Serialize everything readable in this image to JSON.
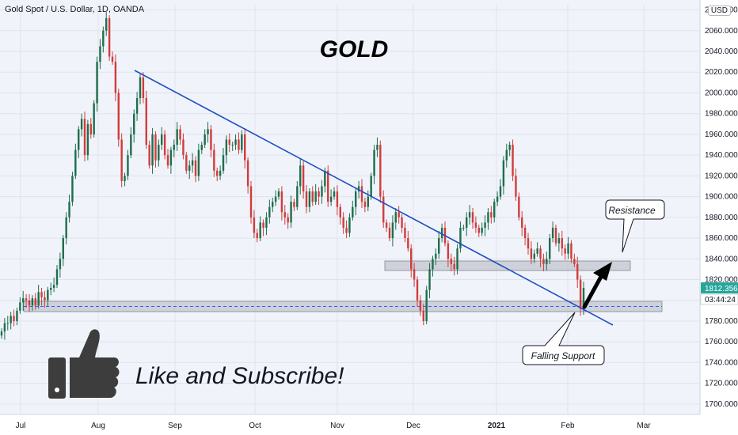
{
  "header": {
    "symbol_title": "Gold Spot / U.S. Dollar, 1D, OANDA",
    "currency_badge": "USD"
  },
  "price_scale": {
    "last_price": "1812.356",
    "last_price_color": "#26a69a",
    "countdown": "03:44:24",
    "countdown_color": "#131722"
  },
  "annotations": {
    "main_title": "GOLD",
    "resistance_label": "Resistance",
    "support_label": "Falling Support",
    "cta_text": "Like and Subscribe!",
    "cta_icon": "thumbs-up-icon"
  },
  "colors": {
    "up": "#1e6e4c",
    "down": "#d13c3c",
    "trendline": "#1e4fc2",
    "zone": "#b2b5be",
    "background": "#f0f3fa"
  },
  "chart_data": {
    "type": "candlestick",
    "title": "GOLD",
    "symbol": "Gold Spot / U.S. Dollar, 1D, OANDA",
    "ylim": [
      1690,
      2085
    ],
    "y_ticks": [
      1700,
      1720,
      1740,
      1760,
      1780,
      1800,
      1820,
      1840,
      1860,
      1880,
      1900,
      1920,
      1940,
      1960,
      1980,
      2000,
      2020,
      2040,
      2060,
      2080
    ],
    "y_tick_labels": [
      "1700.000",
      "1720.000",
      "1740.000",
      "1760.000",
      "1780.000",
      "",
      "1820.000",
      "1840.000",
      "1860.000",
      "1880.000",
      "1900.000",
      "1920.000",
      "1940.000",
      "1960.000",
      "1980.000",
      "2000.000",
      "2020.000",
      "2040.000",
      "2060.000",
      "2080.000"
    ],
    "x_ticks": [
      "Jul",
      "Aug",
      "Sep",
      "Oct",
      "Nov",
      "Dec",
      "2021",
      "Feb",
      "Mar"
    ],
    "candles_close": [
      1770,
      1778,
      1778,
      1785,
      1780,
      1790,
      1798,
      1802,
      1800,
      1795,
      1802,
      1795,
      1808,
      1803,
      1800,
      1810,
      1812,
      1815,
      1830,
      1840,
      1860,
      1880,
      1895,
      1920,
      1945,
      1965,
      1975,
      1940,
      1970,
      1960,
      1990,
      2030,
      2045,
      2060,
      2072,
      2035,
      2030,
      2000,
      1955,
      1915,
      1920,
      1940,
      1960,
      1980,
      1995,
      2015,
      1995,
      1950,
      1930,
      1960,
      1935,
      1950,
      1960,
      1940,
      1930,
      1945,
      1950,
      1965,
      1955,
      1940,
      1925,
      1930,
      1935,
      1920,
      1945,
      1950,
      1960,
      1965,
      1945,
      1925,
      1920,
      1925,
      1940,
      1955,
      1950,
      1950,
      1955,
      1945,
      1960,
      1935,
      1910,
      1880,
      1865,
      1860,
      1875,
      1870,
      1880,
      1890,
      1895,
      1900,
      1905,
      1885,
      1880,
      1875,
      1895,
      1890,
      1910,
      1930,
      1905,
      1890,
      1905,
      1895,
      1905,
      1900,
      1910,
      1925,
      1895,
      1900,
      1905,
      1890,
      1880,
      1870,
      1865,
      1880,
      1890,
      1905,
      1910,
      1895,
      1890,
      1900,
      1920,
      1945,
      1950,
      1900,
      1875,
      1870,
      1860,
      1875,
      1885,
      1880,
      1870,
      1860,
      1850,
      1830,
      1820,
      1800,
      1790,
      1780,
      1810,
      1830,
      1840,
      1845,
      1860,
      1870,
      1855,
      1840,
      1835,
      1830,
      1850,
      1870,
      1870,
      1880,
      1885,
      1875,
      1870,
      1865,
      1870,
      1875,
      1885,
      1880,
      1895,
      1900,
      1910,
      1935,
      1945,
      1950,
      1920,
      1900,
      1880,
      1870,
      1860,
      1850,
      1840,
      1845,
      1850,
      1840,
      1835,
      1840,
      1860,
      1870,
      1855,
      1860,
      1850,
      1845,
      1855,
      1840,
      1835,
      1820,
      1792,
      1812
    ]
  }
}
